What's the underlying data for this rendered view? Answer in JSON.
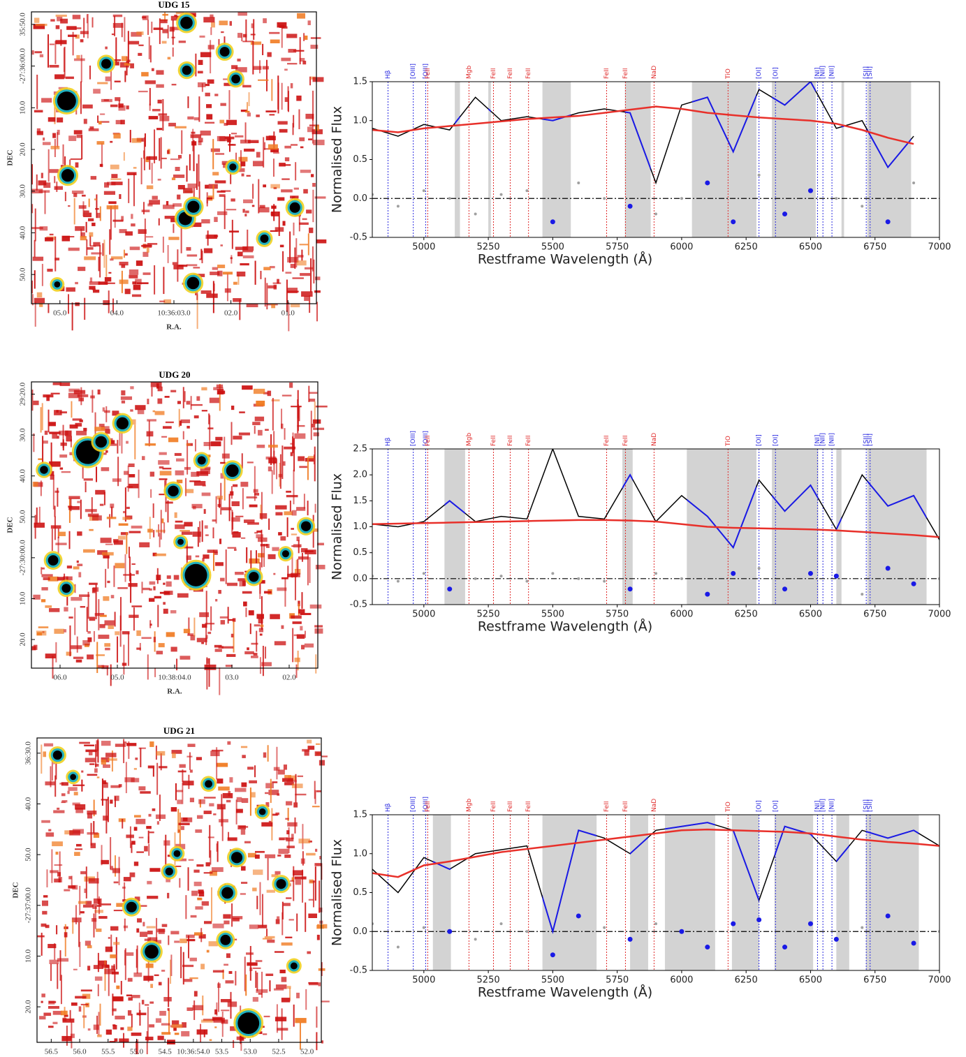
{
  "images": [
    {
      "title": "UDG 15",
      "xlabel": "R.A.",
      "ylabel": "DEC",
      "xticks": [
        "05.0",
        "04.0",
        "10:36:03.0",
        "02.0",
        "01.0"
      ],
      "yticks": [
        "35:50.0",
        "-27:36:00.0",
        "10.0",
        "20.0",
        "30.0",
        "40.0",
        "50.0"
      ]
    },
    {
      "title": "UDG 20",
      "xlabel": "R.A.",
      "ylabel": "DEC",
      "xticks": [
        "06.0",
        "05.0",
        "10:38:04.0",
        "03.0",
        "02.0"
      ],
      "yticks": [
        "29:20.0",
        "30.0",
        "40.0",
        "50.0",
        "-27:30:00.0",
        "10.0",
        "20.0"
      ]
    },
    {
      "title": "UDG 21",
      "xlabel": "R.A.",
      "ylabel": "DEC",
      "xticks": [
        "56.5",
        "56.0",
        "55.5",
        "55.0",
        "54.5",
        "10:36:54.0",
        "53.5",
        "53.0",
        "52.5",
        "52.0"
      ],
      "yticks": [
        "36:30.0",
        "40.0",
        "50.0",
        "-27:37:00.0",
        "10.0",
        "20.0"
      ]
    }
  ],
  "chart_data": [
    {
      "type": "line",
      "xlabel": "Restframe Wavelength (Å)",
      "ylabel": "Normalised Flux",
      "xlim": [
        4800,
        7000
      ],
      "ylim": [
        -0.5,
        1.5
      ],
      "xticks": [
        5000,
        5250,
        5500,
        5750,
        6000,
        6250,
        6500,
        6750,
        7000
      ],
      "yticks": [
        -0.5,
        {
          "value": 0,
          "label": "0.0"
        },
        0.5,
        {
          "value": 1,
          "label": "1.0"
        },
        1.5
      ],
      "zero_line": true,
      "mask_color": "#1a1ae6",
      "mask_fill": "#d3d3d3",
      "masks": [
        [
          5120,
          5140
        ],
        [
          5250,
          5260
        ],
        [
          5460,
          5570
        ],
        [
          5780,
          5880
        ],
        [
          6040,
          6290
        ],
        [
          6350,
          6520
        ],
        [
          6620,
          6630
        ],
        [
          6720,
          6890
        ]
      ],
      "line_markers": [
        {
          "x": 4861,
          "label": "Hβ",
          "color": "#2a2ae0"
        },
        {
          "x": 4959,
          "label": "[OIII]",
          "color": "#2a2ae0"
        },
        {
          "x": 5007,
          "label": "[OIII]",
          "color": "#2a2ae0"
        },
        {
          "x": 5015,
          "label": "FeII",
          "color": "#e02a2a"
        },
        {
          "x": 5175,
          "label": "Mgb",
          "color": "#e02a2a"
        },
        {
          "x": 5270,
          "label": "FeII",
          "color": "#e02a2a"
        },
        {
          "x": 5335,
          "label": "FeII",
          "color": "#e02a2a"
        },
        {
          "x": 5406,
          "label": "FeII",
          "color": "#e02a2a"
        },
        {
          "x": 5709,
          "label": "FeII",
          "color": "#e02a2a"
        },
        {
          "x": 5782,
          "label": "FeII",
          "color": "#e02a2a"
        },
        {
          "x": 5893,
          "label": "NaD",
          "color": "#e02a2a"
        },
        {
          "x": 6180,
          "label": "TiO",
          "color": "#e02a2a"
        },
        {
          "x": 6300,
          "label": "[OI]",
          "color": "#2a2ae0"
        },
        {
          "x": 6364,
          "label": "[OI]",
          "color": "#2a2ae0"
        },
        {
          "x": 6527,
          "label": "[NI]",
          "color": "#2a2ae0"
        },
        {
          "x": 6548,
          "label": "[NII]",
          "color": "#2a2ae0"
        },
        {
          "x": 6583,
          "label": "[NII]",
          "color": "#2a2ae0"
        },
        {
          "x": 6716,
          "label": "[SII]",
          "color": "#2a2ae0"
        },
        {
          "x": 6731,
          "label": "[SII]",
          "color": "#2a2ae0"
        }
      ],
      "x": [
        4800,
        4900,
        5000,
        5100,
        5200,
        5300,
        5400,
        5500,
        5600,
        5700,
        5800,
        5900,
        6000,
        6100,
        6200,
        6300,
        6400,
        6500,
        6600,
        6700,
        6800,
        6900,
        7000
      ],
      "series": [
        {
          "name": "Spectrum",
          "color": "#000000",
          "values": [
            0.9,
            0.8,
            0.95,
            0.88,
            1.3,
            1.0,
            1.05,
            1.0,
            1.1,
            1.15,
            1.1,
            0.2,
            1.2,
            1.3,
            0.6,
            1.4,
            1.2,
            1.5,
            0.9,
            1.0,
            0.4,
            0.8,
            null
          ]
        },
        {
          "name": "Fit",
          "color": "#e8302a",
          "values": [
            0.88,
            0.85,
            0.9,
            0.93,
            0.96,
            0.99,
            1.02,
            1.04,
            1.06,
            1.1,
            1.14,
            1.18,
            1.15,
            1.1,
            1.07,
            1.04,
            1.02,
            1.0,
            0.96,
            0.88,
            0.78,
            0.7,
            null
          ]
        },
        {
          "name": "Residual",
          "color": "#a0a0a0",
          "values": [
            0.05,
            -0.1,
            0.1,
            0.0,
            -0.2,
            0.05,
            0.1,
            -0.3,
            0.2,
            0.0,
            -0.1,
            -0.2,
            0.0,
            0.2,
            -0.3,
            0.3,
            -0.2,
            0.1,
            0.0,
            -0.1,
            -0.3,
            0.2,
            null
          ]
        }
      ]
    },
    {
      "type": "line",
      "xlabel": "Restframe Wavelength (Å)",
      "ylabel": "Normalised Flux",
      "xlim": [
        4800,
        7000
      ],
      "ylim": [
        -0.5,
        2.5
      ],
      "xticks": [
        5000,
        5250,
        5500,
        5750,
        6000,
        6250,
        6500,
        6750,
        7000
      ],
      "yticks": [
        -0.5,
        {
          "value": 0,
          "label": "0.0"
        },
        0.5,
        {
          "value": 1,
          "label": "1.0"
        },
        1.5,
        {
          "value": 2,
          "label": "2.0"
        },
        2.5
      ],
      "zero_line": true,
      "mask_color": "#1a1ae6",
      "mask_fill": "#d3d3d3",
      "masks": [
        [
          5080,
          5160
        ],
        [
          5770,
          5810
        ],
        [
          6020,
          6290
        ],
        [
          6350,
          6530
        ],
        [
          6600,
          6620
        ],
        [
          6720,
          6950
        ]
      ],
      "line_markers": [
        {
          "x": 4861,
          "label": "Hβ",
          "color": "#2a2ae0"
        },
        {
          "x": 4959,
          "label": "[OIII]",
          "color": "#2a2ae0"
        },
        {
          "x": 5007,
          "label": "[OIII]",
          "color": "#2a2ae0"
        },
        {
          "x": 5015,
          "label": "FeII",
          "color": "#e02a2a"
        },
        {
          "x": 5175,
          "label": "Mgb",
          "color": "#e02a2a"
        },
        {
          "x": 5270,
          "label": "FeII",
          "color": "#e02a2a"
        },
        {
          "x": 5335,
          "label": "FeII",
          "color": "#e02a2a"
        },
        {
          "x": 5406,
          "label": "FeII",
          "color": "#e02a2a"
        },
        {
          "x": 5709,
          "label": "FeII",
          "color": "#e02a2a"
        },
        {
          "x": 5782,
          "label": "FeII",
          "color": "#e02a2a"
        },
        {
          "x": 5893,
          "label": "NaD",
          "color": "#e02a2a"
        },
        {
          "x": 6180,
          "label": "TiO",
          "color": "#e02a2a"
        },
        {
          "x": 6300,
          "label": "[OI]",
          "color": "#2a2ae0"
        },
        {
          "x": 6364,
          "label": "[OI]",
          "color": "#2a2ae0"
        },
        {
          "x": 6527,
          "label": "[NI]",
          "color": "#2a2ae0"
        },
        {
          "x": 6548,
          "label": "[NII]",
          "color": "#2a2ae0"
        },
        {
          "x": 6583,
          "label": "[NII]",
          "color": "#2a2ae0"
        },
        {
          "x": 6716,
          "label": "[SII]",
          "color": "#2a2ae0"
        },
        {
          "x": 6731,
          "label": "[SII]",
          "color": "#2a2ae0"
        }
      ],
      "x": [
        4800,
        4900,
        5000,
        5100,
        5200,
        5300,
        5400,
        5500,
        5600,
        5700,
        5800,
        5900,
        6000,
        6100,
        6200,
        6300,
        6400,
        6500,
        6600,
        6700,
        6800,
        6900,
        7000
      ],
      "series": [
        {
          "name": "Spectrum",
          "color": "#000000",
          "values": [
            1.05,
            1.0,
            1.1,
            1.5,
            1.1,
            1.2,
            1.15,
            2.5,
            1.2,
            1.15,
            2.0,
            1.1,
            1.6,
            1.2,
            0.6,
            1.9,
            1.3,
            1.8,
            0.95,
            2.0,
            1.4,
            1.6,
            0.75
          ]
        },
        {
          "name": "Fit",
          "color": "#e8302a",
          "values": [
            1.05,
            1.06,
            1.07,
            1.08,
            1.09,
            1.1,
            1.11,
            1.12,
            1.13,
            1.13,
            1.12,
            1.1,
            1.05,
            1.0,
            0.98,
            0.97,
            0.96,
            0.95,
            0.93,
            0.9,
            0.87,
            0.84,
            0.8
          ]
        },
        {
          "name": "Residual",
          "color": "#a0a0a0",
          "values": [
            0.05,
            -0.05,
            0.1,
            -0.2,
            0.0,
            0.05,
            -0.05,
            0.1,
            0.0,
            -0.05,
            -0.2,
            0.1,
            0.0,
            -0.3,
            0.1,
            0.2,
            -0.2,
            0.1,
            0.05,
            -0.3,
            0.2,
            -0.1,
            0.0
          ]
        }
      ]
    },
    {
      "type": "line",
      "xlabel": "Restframe Wavelength (Å)",
      "ylabel": "Normalised Flux",
      "xlim": [
        4800,
        7000
      ],
      "ylim": [
        -0.5,
        1.5
      ],
      "xticks": [
        5000,
        5250,
        5500,
        5750,
        6000,
        6250,
        6500,
        6750,
        7000
      ],
      "yticks": [
        -0.5,
        {
          "value": 0,
          "label": "0.0"
        },
        0.5,
        {
          "value": 1,
          "label": "1.0"
        },
        1.5
      ],
      "zero_line": true,
      "mask_color": "#1a1ae6",
      "mask_fill": "#d3d3d3",
      "masks": [
        [
          5035,
          5105
        ],
        [
          5460,
          5670
        ],
        [
          5800,
          5870
        ],
        [
          5935,
          6130
        ],
        [
          6195,
          6300
        ],
        [
          6360,
          6510
        ],
        [
          6600,
          6650
        ],
        [
          6715,
          6920
        ]
      ],
      "line_markers": [
        {
          "x": 4861,
          "label": "Hβ",
          "color": "#2a2ae0"
        },
        {
          "x": 4959,
          "label": "[OIII]",
          "color": "#2a2ae0"
        },
        {
          "x": 5007,
          "label": "[OIII]",
          "color": "#2a2ae0"
        },
        {
          "x": 5015,
          "label": "FeII",
          "color": "#e02a2a"
        },
        {
          "x": 5175,
          "label": "Mgb",
          "color": "#e02a2a"
        },
        {
          "x": 5270,
          "label": "FeII",
          "color": "#e02a2a"
        },
        {
          "x": 5335,
          "label": "FeII",
          "color": "#e02a2a"
        },
        {
          "x": 5406,
          "label": "FeII",
          "color": "#e02a2a"
        },
        {
          "x": 5709,
          "label": "FeII",
          "color": "#e02a2a"
        },
        {
          "x": 5782,
          "label": "FeII",
          "color": "#e02a2a"
        },
        {
          "x": 5893,
          "label": "NaD",
          "color": "#e02a2a"
        },
        {
          "x": 6180,
          "label": "TiO",
          "color": "#e02a2a"
        },
        {
          "x": 6300,
          "label": "[OI]",
          "color": "#2a2ae0"
        },
        {
          "x": 6364,
          "label": "[OI]",
          "color": "#2a2ae0"
        },
        {
          "x": 6527,
          "label": "[NI]",
          "color": "#2a2ae0"
        },
        {
          "x": 6548,
          "label": "[NII]",
          "color": "#2a2ae0"
        },
        {
          "x": 6583,
          "label": "[NII]",
          "color": "#2a2ae0"
        },
        {
          "x": 6716,
          "label": "[SII]",
          "color": "#2a2ae0"
        },
        {
          "x": 6731,
          "label": "[SII]",
          "color": "#2a2ae0"
        }
      ],
      "x": [
        4800,
        4900,
        5000,
        5100,
        5200,
        5300,
        5400,
        5500,
        5600,
        5700,
        5800,
        5900,
        6000,
        6100,
        6200,
        6300,
        6400,
        6500,
        6600,
        6700,
        6800,
        6900,
        7000
      ],
      "series": [
        {
          "name": "Spectrum",
          "color": "#000000",
          "values": [
            0.8,
            0.5,
            0.95,
            0.8,
            1.0,
            1.05,
            1.1,
            0.0,
            1.3,
            1.2,
            1.0,
            1.3,
            1.35,
            1.4,
            1.3,
            0.4,
            1.35,
            1.25,
            0.9,
            1.3,
            1.2,
            1.3,
            1.1
          ]
        },
        {
          "name": "Fit",
          "color": "#e8302a",
          "values": [
            0.75,
            0.7,
            0.85,
            0.9,
            0.96,
            1.02,
            1.06,
            1.1,
            1.14,
            1.18,
            1.22,
            1.26,
            1.3,
            1.31,
            1.3,
            1.29,
            1.28,
            1.26,
            1.22,
            1.18,
            1.15,
            1.13,
            1.1
          ]
        },
        {
          "name": "Residual",
          "color": "#a0a0a0",
          "values": [
            0.1,
            -0.2,
            0.05,
            0.0,
            -0.1,
            0.1,
            0.0,
            -0.3,
            0.2,
            0.05,
            -0.1,
            0.1,
            0.0,
            -0.2,
            0.1,
            0.15,
            -0.2,
            0.1,
            -0.1,
            0.05,
            0.2,
            -0.15,
            0.0
          ]
        }
      ]
    }
  ]
}
